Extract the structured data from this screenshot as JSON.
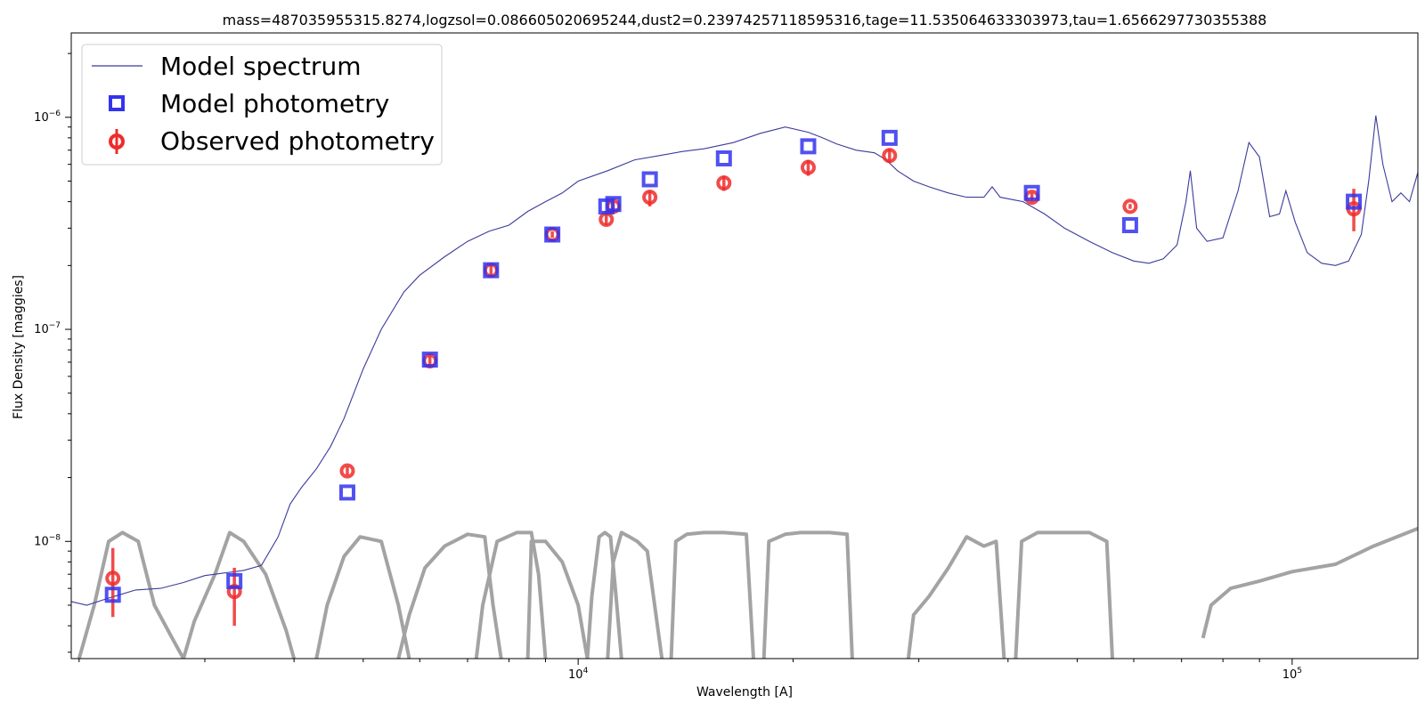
{
  "chart_data": {
    "type": "scatter",
    "title": "mass=487035955315.8274,logzsol=0.086605020695244,dust2=0.23974257118595316,tage=11.535064633303973,tau=1.6566297730355388",
    "xlabel": "Wavelength [A]",
    "ylabel": "Flux Density [maggies]",
    "xscale": "log",
    "yscale": "log",
    "xlim": [
      1950,
      150000
    ],
    "ylim": [
      2.8e-09,
      2.5e-06
    ],
    "x_major_ticks": [
      {
        "value": 10000,
        "base": "10",
        "exp": "4"
      },
      {
        "value": 100000,
        "base": "10",
        "exp": "5"
      }
    ],
    "y_major_ticks": [
      {
        "value": 1e-08,
        "base": "10",
        "exp": "−8"
      },
      {
        "value": 1e-07,
        "base": "10",
        "exp": "−7"
      },
      {
        "value": 1e-06,
        "base": "10",
        "exp": "−6"
      }
    ],
    "grid": false,
    "legend_position": "upper-left",
    "legend": [
      {
        "label": "Model spectrum",
        "kind": "line"
      },
      {
        "label": "Model photometry",
        "kind": "square"
      },
      {
        "label": "Observed photometry",
        "kind": "circle"
      }
    ],
    "colors": {
      "spectrum": "#3b3b9c",
      "model_phot": "#3333ee",
      "observed_phot": "#ee2b2b",
      "filters": "#a3a3a3"
    },
    "series": [
      {
        "name": "Model spectrum",
        "kind": "line",
        "points": [
          [
            1950,
            5.2e-09
          ],
          [
            2050,
            5e-09
          ],
          [
            2200,
            5.4e-09
          ],
          [
            2400,
            5.9e-09
          ],
          [
            2600,
            6e-09
          ],
          [
            2800,
            6.4e-09
          ],
          [
            3000,
            6.9e-09
          ],
          [
            3200,
            7.1e-09
          ],
          [
            3400,
            7.3e-09
          ],
          [
            3600,
            7.7e-09
          ],
          [
            3800,
            1.05e-08
          ],
          [
            3950,
            1.5e-08
          ],
          [
            4100,
            1.8e-08
          ],
          [
            4300,
            2.2e-08
          ],
          [
            4500,
            2.8e-08
          ],
          [
            4700,
            3.8e-08
          ],
          [
            5000,
            6.5e-08
          ],
          [
            5300,
            1e-07
          ],
          [
            5700,
            1.5e-07
          ],
          [
            6000,
            1.8e-07
          ],
          [
            6500,
            2.2e-07
          ],
          [
            7000,
            2.6e-07
          ],
          [
            7500,
            2.9e-07
          ],
          [
            8000,
            3.1e-07
          ],
          [
            8500,
            3.6e-07
          ],
          [
            9000,
            4e-07
          ],
          [
            9500,
            4.4e-07
          ],
          [
            10000,
            5e-07
          ],
          [
            11000,
            5.6e-07
          ],
          [
            12000,
            6.3e-07
          ],
          [
            13000,
            6.6e-07
          ],
          [
            14000,
            6.9e-07
          ],
          [
            15000,
            7.1e-07
          ],
          [
            16500,
            7.6e-07
          ],
          [
            18000,
            8.4e-07
          ],
          [
            19500,
            9e-07
          ],
          [
            21000,
            8.5e-07
          ],
          [
            22000,
            8e-07
          ],
          [
            23000,
            7.5e-07
          ],
          [
            24500,
            7e-07
          ],
          [
            26000,
            6.8e-07
          ],
          [
            27000,
            6.3e-07
          ],
          [
            28000,
            5.6e-07
          ],
          [
            29500,
            5e-07
          ],
          [
            31000,
            4.7e-07
          ],
          [
            33000,
            4.4e-07
          ],
          [
            35000,
            4.2e-07
          ],
          [
            37000,
            4.2e-07
          ],
          [
            38000,
            4.7e-07
          ],
          [
            39000,
            4.2e-07
          ],
          [
            42000,
            4e-07
          ],
          [
            45000,
            3.5e-07
          ],
          [
            48000,
            3e-07
          ],
          [
            52000,
            2.6e-07
          ],
          [
            56000,
            2.3e-07
          ],
          [
            60000,
            2.1e-07
          ],
          [
            63000,
            2.05e-07
          ],
          [
            66000,
            2.15e-07
          ],
          [
            69000,
            2.5e-07
          ],
          [
            71000,
            4e-07
          ],
          [
            72000,
            5.6e-07
          ],
          [
            73500,
            3e-07
          ],
          [
            76000,
            2.6e-07
          ],
          [
            80000,
            2.7e-07
          ],
          [
            84000,
            4.5e-07
          ],
          [
            87000,
            7.6e-07
          ],
          [
            90000,
            6.5e-07
          ],
          [
            93000,
            3.4e-07
          ],
          [
            96000,
            3.5e-07
          ],
          [
            98000,
            4.5e-07
          ],
          [
            101000,
            3.2e-07
          ],
          [
            105000,
            2.3e-07
          ],
          [
            110000,
            2.05e-07
          ],
          [
            115000,
            2e-07
          ],
          [
            120000,
            2.1e-07
          ],
          [
            125000,
            2.8e-07
          ],
          [
            128000,
            5e-07
          ],
          [
            131000,
            1.02e-06
          ],
          [
            134000,
            6e-07
          ],
          [
            138000,
            4e-07
          ],
          [
            142000,
            4.4e-07
          ],
          [
            146000,
            4e-07
          ],
          [
            150000,
            5.5e-07
          ]
        ]
      },
      {
        "name": "Model photometry",
        "kind": "square",
        "points": [
          [
            2230,
            5.6e-09
          ],
          [
            3300,
            6.5e-09
          ],
          [
            4750,
            1.7e-08
          ],
          [
            6200,
            7.2e-08
          ],
          [
            7550,
            1.9e-07
          ],
          [
            9200,
            2.8e-07
          ],
          [
            10950,
            3.8e-07
          ],
          [
            11200,
            3.9e-07
          ],
          [
            12600,
            5.1e-07
          ],
          [
            16000,
            6.4e-07
          ],
          [
            21000,
            7.3e-07
          ],
          [
            27300,
            8e-07
          ],
          [
            43200,
            4.4e-07
          ],
          [
            59300,
            3.1e-07
          ],
          [
            122000,
            4e-07
          ]
        ]
      },
      {
        "name": "Observed photometry",
        "kind": "circle",
        "points": [
          [
            2230,
            6.7e-09,
            4.4e-09,
            9.3e-09
          ],
          [
            3300,
            5.8e-09,
            4e-09,
            7.5e-09
          ],
          [
            4750,
            2.15e-08,
            2.05e-08,
            2.25e-08
          ],
          [
            6200,
            7.1e-08,
            6.7e-08,
            7.5e-08
          ],
          [
            7550,
            1.9e-07,
            1.8e-07,
            2e-07
          ],
          [
            9200,
            2.8e-07,
            2.7e-07,
            2.9e-07
          ],
          [
            10950,
            3.3e-07,
            3.1e-07,
            3.5e-07
          ],
          [
            11200,
            3.8e-07,
            3.6e-07,
            4e-07
          ],
          [
            12600,
            4.2e-07,
            3.8e-07,
            4.5e-07
          ],
          [
            16000,
            4.9e-07,
            4.5e-07,
            5.3e-07
          ],
          [
            21000,
            5.8e-07,
            5.3e-07,
            6.3e-07
          ],
          [
            27300,
            6.6e-07,
            6.1e-07,
            7.1e-07
          ],
          [
            43200,
            4.2e-07,
            4e-07,
            4.4e-07
          ],
          [
            59300,
            3.8e-07,
            3.7e-07,
            3.9e-07
          ],
          [
            122000,
            3.7e-07,
            2.9e-07,
            4.6e-07
          ]
        ]
      },
      {
        "name": "",
        "kind": "filters",
        "curves": [
          {
            "x": [
              2000,
              2100,
              2200,
              2300,
              2420,
              2550,
              2700,
              2800
            ],
            "y": [
              2.8e-09,
              5e-09,
              1e-08,
              1.1e-08,
              1e-08,
              5e-09,
              3.5e-09,
              2.8e-09
            ]
          },
          {
            "x": [
              2800,
              2900,
              3100,
              3250,
              3400,
              3650,
              3900,
              4000
            ],
            "y": [
              2.8e-09,
              4.2e-09,
              7e-09,
              1.1e-08,
              1e-08,
              7e-09,
              3.8e-09,
              2.8e-09
            ]
          },
          {
            "x": [
              4300,
              4450,
              4700,
              4950,
              5300,
              5600,
              5800
            ],
            "y": [
              2.8e-09,
              5e-09,
              8.5e-09,
              1.05e-08,
              1e-08,
              5e-09,
              2.8e-09
            ]
          },
          {
            "x": [
              5600,
              5800,
              6100,
              6500,
              7000,
              7400,
              7600,
              7800
            ],
            "y": [
              2.8e-09,
              4.5e-09,
              7.5e-09,
              9.5e-09,
              1.08e-08,
              1.05e-08,
              5e-09,
              2.8e-09
            ]
          },
          {
            "x": [
              7200,
              7350,
              7700,
              8200,
              8600,
              8800,
              9000
            ],
            "y": [
              2.8e-09,
              5e-09,
              1e-08,
              1.1e-08,
              1.1e-08,
              7e-09,
              2.8e-09
            ]
          },
          {
            "x": [
              8500,
              8600,
              9000,
              9500,
              10000,
              10300
            ],
            "y": [
              2.8e-09,
              1e-08,
              1e-08,
              8e-09,
              5e-09,
              2.8e-09
            ]
          },
          {
            "x": [
              10300,
              10450,
              10700,
              10900,
              11100,
              11300,
              11500
            ],
            "y": [
              2.8e-09,
              5.5e-09,
              1.05e-08,
              1.1e-08,
              1.05e-08,
              5.5e-09,
              2.8e-09
            ]
          },
          {
            "x": [
              11000,
              11200,
              11500,
              11800,
              12100,
              12500,
              13100
            ],
            "y": [
              2.8e-09,
              8e-09,
              1.1e-08,
              1.05e-08,
              1e-08,
              9e-09,
              2.8e-09
            ]
          },
          {
            "x": [
              13500,
              13700,
              14200,
              15000,
              16000,
              17200,
              17600
            ],
            "y": [
              2.8e-09,
              1e-08,
              1.08e-08,
              1.1e-08,
              1.1e-08,
              1.08e-08,
              2.8e-09
            ]
          },
          {
            "x": [
              18200,
              18500,
              19500,
              20500,
              22500,
              23800,
              24200
            ],
            "y": [
              2.8e-09,
              1e-08,
              1.08e-08,
              1.1e-08,
              1.1e-08,
              1.08e-08,
              2.8e-09
            ]
          },
          {
            "x": [
              29000,
              29500,
              31000,
              33000,
              35000,
              37000,
              38500,
              39500
            ],
            "y": [
              2.8e-09,
              4.5e-09,
              5.5e-09,
              7.5e-09,
              1.05e-08,
              9.5e-09,
              1e-08,
              2.8e-09
            ]
          },
          {
            "x": [
              41000,
              41800,
              44000,
              48000,
              52000,
              55000,
              56000
            ],
            "y": [
              2.8e-09,
              1e-08,
              1.1e-08,
              1.1e-08,
              1.1e-08,
              1e-08,
              2.8e-09
            ]
          },
          {
            "x": [
              75000,
              77000,
              82000,
              90000,
              100000,
              115000,
              130000,
              150000
            ],
            "y": [
              3.5e-09,
              5e-09,
              6e-09,
              6.5e-09,
              7.2e-09,
              7.8e-09,
              9.5e-09,
              1.15e-08
            ]
          }
        ]
      }
    ]
  }
}
